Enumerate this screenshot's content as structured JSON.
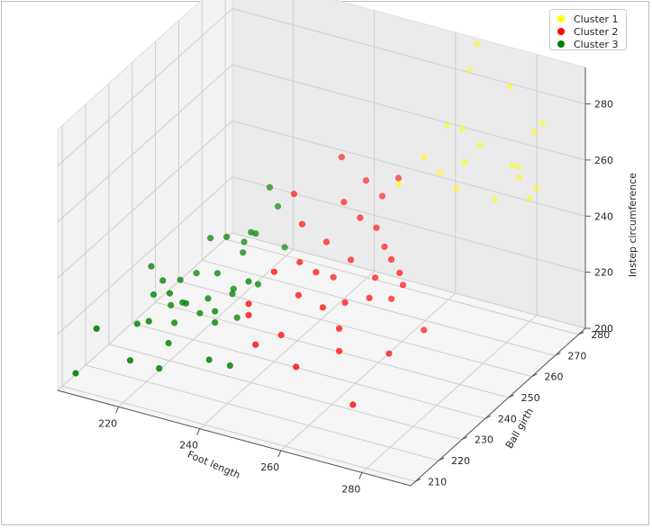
{
  "chart_data": {
    "type": "scatter",
    "projection": "3d",
    "xlabel": "Foot length",
    "ylabel": "Ball girth",
    "zlabel": "Instep circumference",
    "xticks": [
      220,
      240,
      260,
      280
    ],
    "yticks": [
      210,
      220,
      230,
      240,
      250,
      260,
      270,
      280
    ],
    "zticks": [
      200,
      220,
      240,
      260,
      280
    ],
    "legend_position": "top-right",
    "grid": true,
    "series": [
      {
        "name": "Cluster 1",
        "color": "#ffff00",
        "points": [
          [
            262,
            276,
            266
          ],
          [
            268,
            272,
            270
          ],
          [
            270,
            276,
            262
          ],
          [
            264,
            282,
            282
          ],
          [
            266,
            282,
            292
          ],
          [
            274,
            282,
            280
          ],
          [
            280,
            282,
            266
          ],
          [
            282,
            282,
            270
          ],
          [
            276,
            282,
            252
          ],
          [
            278,
            276,
            258
          ],
          [
            262,
            266,
            262
          ],
          [
            266,
            266,
            258
          ],
          [
            270,
            266,
            254
          ],
          [
            272,
            266,
            264
          ],
          [
            282,
            272,
            258
          ],
          [
            284,
            276,
            252
          ],
          [
            280,
            280,
            244
          ],
          [
            276,
            272,
            248
          ],
          [
            258,
            262,
            254
          ]
        ]
      },
      {
        "name": "Cluster 2",
        "color": "#ff0000",
        "points": [
          [
            244,
            262,
            258
          ],
          [
            250,
            262,
            252
          ],
          [
            254,
            262,
            248
          ],
          [
            258,
            262,
            256
          ],
          [
            238,
            252,
            250
          ],
          [
            248,
            256,
            248
          ],
          [
            252,
            256,
            244
          ],
          [
            256,
            256,
            242
          ],
          [
            258,
            256,
            236
          ],
          [
            240,
            252,
            240
          ],
          [
            246,
            252,
            236
          ],
          [
            252,
            252,
            232
          ],
          [
            258,
            252,
            228
          ],
          [
            262,
            252,
            236
          ],
          [
            244,
            244,
            234
          ],
          [
            254,
            246,
            222
          ],
          [
            260,
            246,
            226
          ],
          [
            266,
            250,
            230
          ],
          [
            264,
            252,
            232
          ],
          [
            240,
            240,
            232
          ],
          [
            246,
            240,
            226
          ],
          [
            252,
            240,
            224
          ],
          [
            256,
            240,
            218
          ],
          [
            236,
            236,
            222
          ],
          [
            236,
            236,
            218
          ],
          [
            244,
            236,
            214
          ],
          [
            256,
            240,
            210
          ],
          [
            266,
            244,
            210
          ],
          [
            270,
            252,
            214
          ],
          [
            262,
            252,
            222
          ],
          [
            240,
            232,
            212
          ],
          [
            250,
            232,
            208
          ],
          [
            264,
            232,
            200
          ],
          [
            248,
            244,
            232
          ],
          [
            250,
            248,
            228
          ]
        ]
      },
      {
        "name": "Cluster 3",
        "color": "#008000",
        "points": [
          [
            232,
            252,
            250
          ],
          [
            234,
            252,
            244
          ],
          [
            232,
            244,
            240
          ],
          [
            226,
            244,
            236
          ],
          [
            232,
            246,
            238
          ],
          [
            222,
            244,
            234
          ],
          [
            228,
            248,
            232
          ],
          [
            230,
            244,
            232
          ],
          [
            238,
            248,
            234
          ],
          [
            226,
            240,
            226
          ],
          [
            222,
            238,
            226
          ],
          [
            218,
            238,
            222
          ],
          [
            230,
            240,
            222
          ],
          [
            232,
            236,
            224
          ],
          [
            216,
            234,
            224
          ],
          [
            226,
            236,
            220
          ],
          [
            236,
            240,
            226
          ],
          [
            236,
            236,
            230
          ],
          [
            212,
            236,
            226
          ],
          [
            216,
            230,
            222
          ],
          [
            220,
            230,
            224
          ],
          [
            224,
            230,
            222
          ],
          [
            230,
            232,
            220
          ],
          [
            222,
            232,
            220
          ],
          [
            230,
            232,
            216
          ],
          [
            216,
            228,
            214
          ],
          [
            222,
            226,
            210
          ],
          [
            212,
            230,
            210
          ],
          [
            220,
            232,
            212
          ],
          [
            216,
            220,
            206
          ],
          [
            222,
            222,
            204
          ],
          [
            232,
            226,
            208
          ],
          [
            236,
            228,
            206
          ],
          [
            210,
            216,
            218
          ],
          [
            206,
            214,
            202
          ],
          [
            232,
            238,
            214
          ],
          [
            224,
            236,
            214
          ],
          [
            218,
            234,
            216
          ]
        ]
      }
    ]
  }
}
